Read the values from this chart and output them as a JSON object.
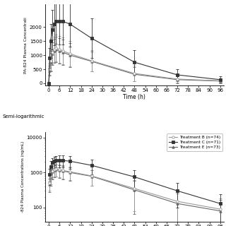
{
  "time_points": [
    0,
    0.5,
    1,
    2,
    3,
    4,
    6,
    8,
    12,
    24,
    48,
    72,
    96
  ],
  "trt_B_mean": [
    0,
    500,
    800,
    1100,
    1200,
    1250,
    1200,
    1150,
    1050,
    800,
    350,
    150,
    90
  ],
  "trt_C_mean": [
    0,
    900,
    1500,
    1900,
    2100,
    2200,
    2200,
    2200,
    2100,
    1600,
    750,
    300,
    130
  ],
  "trt_E_mean": [
    0,
    450,
    750,
    1050,
    1150,
    1200,
    1150,
    1100,
    1000,
    780,
    320,
    130,
    80
  ],
  "trt_B_sd": [
    0,
    200,
    350,
    420,
    450,
    470,
    480,
    480,
    450,
    380,
    270,
    130,
    90
  ],
  "trt_C_sd": [
    0,
    350,
    600,
    700,
    750,
    800,
    820,
    820,
    800,
    700,
    430,
    200,
    110
  ],
  "trt_E_sd": [
    0,
    180,
    330,
    400,
    430,
    450,
    460,
    460,
    430,
    360,
    255,
    120,
    85
  ],
  "legend_labels": [
    "Treatment B (n=74)",
    "Treatment C (n=71)",
    "Treatment E (n=73)"
  ],
  "xlabel": "Time (h)",
  "ylabel_top": "PA-824 Plasma Concentrati",
  "ylabel_bottom": "-824 Plasma Concentrations (ng/mL)",
  "xtick_labels": [
    "0",
    "6",
    "12",
    "18",
    "24",
    "30",
    "36",
    "42",
    "48",
    "54",
    "60",
    "66",
    "72",
    "78",
    "84",
    "90",
    "96"
  ],
  "xtick_values": [
    0,
    6,
    12,
    18,
    24,
    30,
    36,
    42,
    48,
    54,
    60,
    66,
    72,
    78,
    84,
    90,
    96
  ],
  "semi_log_label": "Semi-logarithmic",
  "bg_color": "#ffffff",
  "line_color_B": "#999999",
  "line_color_C": "#333333",
  "line_color_E": "#666666",
  "marker_B": "o",
  "marker_C": "s",
  "marker_E": "^"
}
